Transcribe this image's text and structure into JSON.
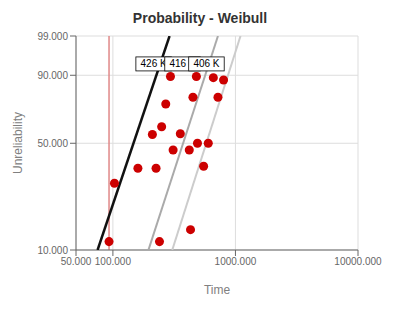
{
  "chart_data": {
    "type": "scatter",
    "title": "Probability - Weibull",
    "x_label": "Time",
    "y_label": "Unreliability",
    "log": "x",
    "xlim": [
      50000,
      10000000
    ],
    "ylim": [
      10.0,
      99.0
    ],
    "xticks": [
      {
        "value": 50000,
        "label": "50.000"
      },
      {
        "value": 100000,
        "label": "100.000"
      },
      {
        "value": 1000000,
        "label": "1000.000"
      },
      {
        "value": 10000000,
        "label": "10000.000"
      }
    ],
    "yticks": [
      {
        "value": 10.0,
        "label": "10.000"
      },
      {
        "value": 50.0,
        "label": "50.000"
      },
      {
        "value": 90.0,
        "label": "90.000"
      },
      {
        "value": 99.0,
        "label": "99.000"
      }
    ],
    "grid": true,
    "series": [
      {
        "type": "line",
        "color": "#111111",
        "x": [
          75000,
          290000
        ],
        "values": [
          10.0,
          99.0
        ]
      },
      {
        "type": "line",
        "color": "#aaaaaa",
        "x": [
          195000,
          720000
        ],
        "values": [
          10.0,
          99.0
        ]
      },
      {
        "type": "line",
        "color": "#cccccc",
        "x": [
          305000,
          1100000
        ],
        "values": [
          10.0,
          99.0
        ]
      },
      {
        "type": "scatter",
        "color": "#cc0000",
        "x": [
          93000,
          103000,
          160000,
          210000,
          225000,
          250000,
          270000,
          295000
        ],
        "values": [
          11.5,
          29.0,
          36.0,
          55.5,
          36.0,
          60.5,
          75.0,
          89.5
        ]
      },
      {
        "type": "scatter",
        "color": "#cc0000",
        "x": [
          240000,
          310000,
          355000,
          420000,
          450000,
          480000
        ],
        "values": [
          11.5,
          46.0,
          56.0,
          46.0,
          79.0,
          89.5
        ]
      },
      {
        "type": "scatter",
        "color": "#cc0000",
        "x": [
          430000,
          490000,
          550000,
          600000,
          660000,
          720000,
          800000
        ],
        "values": [
          14.0,
          50.0,
          37.0,
          50.0,
          89.0,
          79.0,
          88.0
        ]
      }
    ],
    "vline": {
      "x": 93000,
      "color": "#e08888"
    },
    "annotations": [
      {
        "text": "426 K",
        "x": 215000,
        "y": 94.0
      },
      {
        "text": "416 K",
        "x": 370000,
        "y": 94.0
      },
      {
        "text": "406 K",
        "x": 580000,
        "y": 94.0
      }
    ]
  }
}
